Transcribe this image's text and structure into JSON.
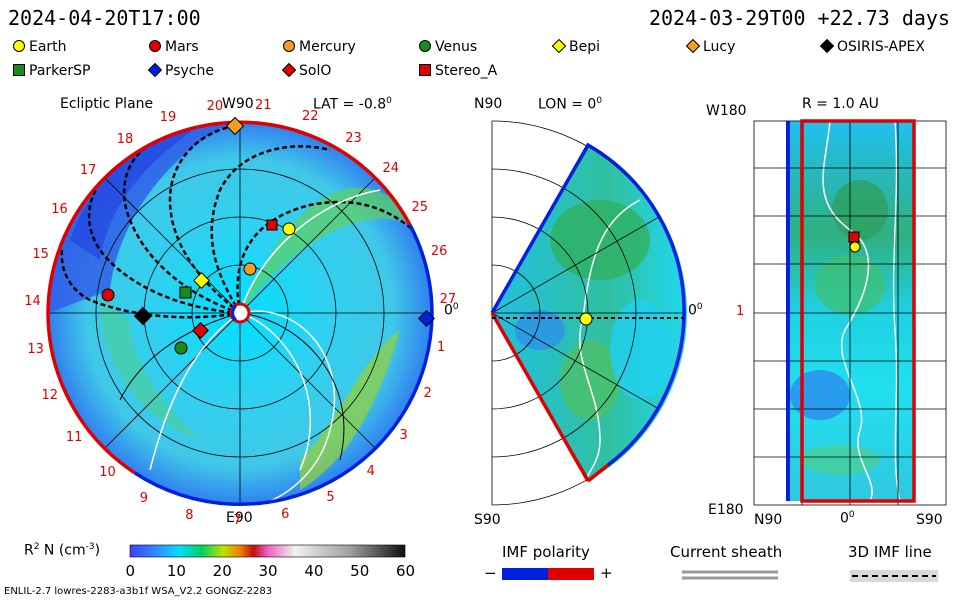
{
  "header": {
    "left_datetime": "2024-04-20T17:00",
    "right_datetime": "2024-03-29T00 +22.73 days"
  },
  "legend": [
    {
      "name": "Earth",
      "shape": "circle",
      "color": "#ffff00"
    },
    {
      "name": "Mars",
      "shape": "circle",
      "color": "#e00000"
    },
    {
      "name": "Mercury",
      "shape": "circle",
      "color": "#f0a020"
    },
    {
      "name": "Venus",
      "shape": "circle",
      "color": "#1a8a1a"
    },
    {
      "name": "Bepi",
      "shape": "diamond",
      "color": "#ffff00"
    },
    {
      "name": "Lucy",
      "shape": "diamond",
      "color": "#f0a020"
    },
    {
      "name": "OSIRIS-APEX",
      "shape": "diamond",
      "color": "#000000"
    },
    {
      "name": "ParkerSP",
      "shape": "square",
      "color": "#1a8a1a"
    },
    {
      "name": "Psyche",
      "shape": "diamond",
      "color": "#0020e0"
    },
    {
      "name": "SolO",
      "shape": "diamond",
      "color": "#e00000"
    },
    {
      "name": "Stereo_A",
      "shape": "square",
      "color": "#e00000"
    }
  ],
  "ecliptic": {
    "title": "Ecliptic Plane",
    "top_label": "W90",
    "lat_label": "LAT = -0.8",
    "deg": "0",
    "right_label": "0",
    "bottom_label": "E90",
    "rotation_labels": [
      "20",
      "21",
      "22",
      "23",
      "24",
      "25",
      "26",
      "27",
      "1",
      "2",
      "3",
      "4",
      "5",
      "6",
      "7",
      "8",
      "9",
      "10",
      "11",
      "12",
      "13",
      "14",
      "15",
      "16",
      "17",
      "18",
      "19"
    ]
  },
  "meridional": {
    "top_left": "N90",
    "lon_label": "LON = 0",
    "deg": "0",
    "right_label": "0",
    "bottom_left": "S90"
  },
  "lonmap": {
    "top_left": "W180",
    "r_label": "R = 1.0 AU",
    "mid_left": "1",
    "bottom_left": "E180",
    "x_left": "N90",
    "x_mid": "0",
    "x_right": "S90"
  },
  "colorbar": {
    "label": "R",
    "label_sup": "2",
    "label_rest": " N (cm",
    "label_sup2": "-3",
    "label_end": ")",
    "ticks": [
      "0",
      "10",
      "20",
      "30",
      "40",
      "50",
      "60"
    ]
  },
  "imf": {
    "title": "IMF polarity",
    "minus": "−",
    "plus": "+"
  },
  "sheath": {
    "title": "Current sheath"
  },
  "imfline": {
    "title": "3D IMF line"
  },
  "footer": {
    "text": "ENLIL-2.7 lowres-2283-a3b1f WSA_V2.2 GONGZ-2283"
  }
}
